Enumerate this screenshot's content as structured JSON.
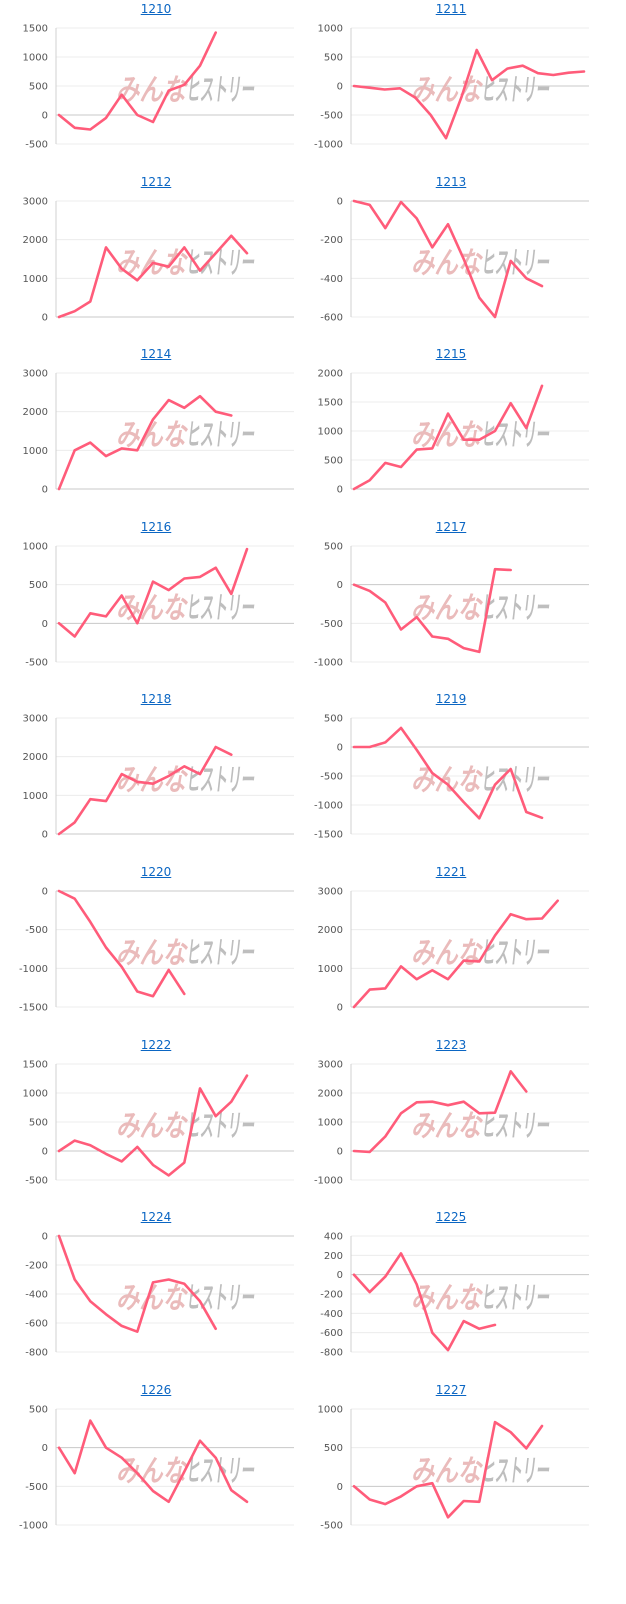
{
  "page": {
    "background": "#ffffff",
    "accent": "#ff5c7a",
    "link_color": "#0b66c3"
  },
  "watermark": {
    "part1": "みんな",
    "part2": "ヒストリー"
  },
  "chart_data": [
    {
      "type": "line",
      "title": "1210",
      "ticks": [
        1500,
        1000,
        500,
        0,
        -500
      ],
      "ylim": [
        -500,
        1500
      ],
      "series": [
        {
          "name": "1210",
          "values": [
            0,
            -220,
            -250,
            -50,
            350,
            0,
            -120,
            420,
            520,
            850,
            1420
          ]
        }
      ]
    },
    {
      "type": "line",
      "title": "1211",
      "ticks": [
        1000,
        500,
        0,
        -500,
        -1000
      ],
      "ylim": [
        -1000,
        1000
      ],
      "series": [
        {
          "name": "1211",
          "values": [
            0,
            -30,
            -60,
            -40,
            -200,
            -500,
            -900,
            -200,
            620,
            100,
            300,
            350,
            220,
            190,
            230,
            250
          ]
        }
      ]
    },
    {
      "type": "line",
      "title": "1212",
      "ticks": [
        3000,
        2000,
        1000,
        0
      ],
      "ylim": [
        0,
        3000
      ],
      "series": [
        {
          "name": "1212",
          "values": [
            0,
            150,
            400,
            1800,
            1250,
            950,
            1400,
            1300,
            1800,
            1200,
            1650,
            2100,
            1650
          ]
        }
      ]
    },
    {
      "type": "line",
      "title": "1213",
      "ticks": [
        0,
        -200,
        -400,
        -600
      ],
      "ylim": [
        -600,
        0
      ],
      "series": [
        {
          "name": "1213",
          "values": [
            0,
            -20,
            -140,
            -5,
            -90,
            -240,
            -120,
            -300,
            -500,
            -600,
            -310,
            -400,
            -440
          ]
        }
      ]
    },
    {
      "type": "line",
      "title": "1214",
      "ticks": [
        3000,
        2000,
        1000,
        0
      ],
      "ylim": [
        0,
        3000
      ],
      "series": [
        {
          "name": "1214",
          "values": [
            0,
            1000,
            1200,
            850,
            1050,
            1000,
            1800,
            2300,
            2100,
            2400,
            2000,
            1900
          ]
        }
      ]
    },
    {
      "type": "line",
      "title": "1215",
      "ticks": [
        2000,
        1500,
        1000,
        500,
        0
      ],
      "ylim": [
        0,
        2000
      ],
      "series": [
        {
          "name": "1215",
          "values": [
            0,
            150,
            450,
            380,
            680,
            700,
            1300,
            850,
            850,
            1000,
            1480,
            1050,
            1780
          ]
        }
      ]
    },
    {
      "type": "line",
      "title": "1216",
      "ticks": [
        1000,
        500,
        0,
        -500
      ],
      "ylim": [
        -500,
        1000
      ],
      "series": [
        {
          "name": "1216",
          "values": [
            0,
            -170,
            130,
            90,
            360,
            0,
            540,
            430,
            580,
            600,
            720,
            380,
            960
          ]
        }
      ]
    },
    {
      "type": "line",
      "title": "1217",
      "ticks": [
        500,
        0,
        -500,
        -1000
      ],
      "ylim": [
        -1000,
        500
      ],
      "series": [
        {
          "name": "1217",
          "values": [
            0,
            -80,
            -230,
            -580,
            -420,
            -670,
            -700,
            -820,
            -870,
            200,
            190
          ]
        }
      ]
    },
    {
      "type": "line",
      "title": "1218",
      "ticks": [
        3000,
        2000,
        1000,
        0
      ],
      "ylim": [
        0,
        3000
      ],
      "series": [
        {
          "name": "1218",
          "values": [
            0,
            300,
            900,
            850,
            1550,
            1350,
            1300,
            1500,
            1750,
            1550,
            2250,
            2050
          ]
        }
      ]
    },
    {
      "type": "line",
      "title": "1219",
      "ticks": [
        500,
        0,
        -500,
        -1000,
        -1500
      ],
      "ylim": [
        -1500,
        500
      ],
      "series": [
        {
          "name": "1219",
          "values": [
            0,
            0,
            80,
            330,
            -50,
            -450,
            -650,
            -950,
            -1230,
            -650,
            -380,
            -1120,
            -1220
          ]
        }
      ]
    },
    {
      "type": "line",
      "title": "1220",
      "ticks": [
        0,
        -500,
        -1000,
        -1500
      ],
      "ylim": [
        -1500,
        0
      ],
      "series": [
        {
          "name": "1220",
          "values": [
            0,
            -100,
            -400,
            -730,
            -980,
            -1300,
            -1360,
            -1020,
            -1330
          ]
        }
      ]
    },
    {
      "type": "line",
      "title": "1221",
      "ticks": [
        3000,
        2000,
        1000,
        0
      ],
      "ylim": [
        0,
        3000
      ],
      "series": [
        {
          "name": "1221",
          "values": [
            0,
            450,
            480,
            1050,
            720,
            950,
            720,
            1200,
            1180,
            1850,
            2400,
            2270,
            2290,
            2750
          ]
        }
      ]
    },
    {
      "type": "line",
      "title": "1222",
      "ticks": [
        1500,
        1000,
        500,
        0,
        -500
      ],
      "ylim": [
        -500,
        1500
      ],
      "series": [
        {
          "name": "1222",
          "values": [
            0,
            180,
            100,
            -50,
            -180,
            70,
            -240,
            -420,
            -200,
            1080,
            600,
            850,
            1300
          ]
        }
      ]
    },
    {
      "type": "line",
      "title": "1223",
      "ticks": [
        3000,
        2000,
        1000,
        0,
        -1000
      ],
      "ylim": [
        -1000,
        3000
      ],
      "series": [
        {
          "name": "1223",
          "values": [
            0,
            -30,
            500,
            1300,
            1680,
            1700,
            1580,
            1700,
            1300,
            1320,
            2750,
            2050
          ]
        }
      ]
    },
    {
      "type": "line",
      "title": "1224",
      "ticks": [
        0,
        -200,
        -400,
        -600,
        -800
      ],
      "ylim": [
        -800,
        0
      ],
      "series": [
        {
          "name": "1224",
          "values": [
            0,
            -300,
            -450,
            -540,
            -620,
            -660,
            -320,
            -300,
            -330,
            -450,
            -640
          ]
        }
      ]
    },
    {
      "type": "line",
      "title": "1225",
      "ticks": [
        400,
        200,
        0,
        -200,
        -400,
        -600,
        -800
      ],
      "ylim": [
        -800,
        400
      ],
      "series": [
        {
          "name": "1225",
          "values": [
            0,
            -180,
            -20,
            220,
            -100,
            -600,
            -780,
            -480,
            -560,
            -520
          ]
        }
      ]
    },
    {
      "type": "line",
      "title": "1226",
      "ticks": [
        500,
        0,
        -500,
        -1000
      ],
      "ylim": [
        -1000,
        500
      ],
      "series": [
        {
          "name": "1226",
          "values": [
            0,
            -330,
            350,
            0,
            -130,
            -330,
            -560,
            -700,
            -310,
            90,
            -130,
            -550,
            -700
          ]
        }
      ]
    },
    {
      "type": "line",
      "title": "1227",
      "ticks": [
        1000,
        500,
        0,
        -500
      ],
      "ylim": [
        -500,
        1000
      ],
      "series": [
        {
          "name": "1227",
          "values": [
            0,
            -170,
            -230,
            -130,
            0,
            40,
            -400,
            -190,
            -200,
            830,
            700,
            490,
            780
          ]
        }
      ]
    }
  ]
}
